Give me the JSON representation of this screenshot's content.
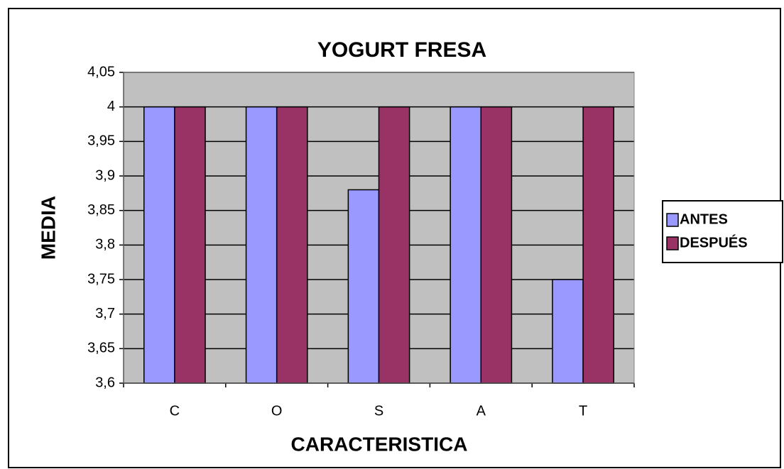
{
  "chart_data": {
    "type": "bar",
    "title": "YOGURT FRESA",
    "x_label": "CARACTERISTICA",
    "y_label": "MEDIA",
    "categories": [
      "C",
      "O",
      "S",
      "A",
      "T"
    ],
    "series": [
      {
        "name": "ANTES",
        "color": "#9999ff",
        "values": [
          4,
          4,
          3.88,
          4,
          3.75
        ]
      },
      {
        "name": "DESPUÉS",
        "color": "#993366",
        "values": [
          4,
          4,
          4,
          4,
          4
        ]
      }
    ],
    "ylim": [
      3.6,
      4.05
    ],
    "yticks": [
      {
        "value": 3.6,
        "label": "3,6"
      },
      {
        "value": 3.65,
        "label": "3,65"
      },
      {
        "value": 3.7,
        "label": "3,7"
      },
      {
        "value": 3.75,
        "label": "3,75"
      },
      {
        "value": 3.8,
        "label": "3,8"
      },
      {
        "value": 3.85,
        "label": "3,85"
      },
      {
        "value": 3.9,
        "label": "3,9"
      },
      {
        "value": 3.95,
        "label": "3,95"
      },
      4,
      {
        "value": 4.05,
        "label": "4,05"
      }
    ],
    "grid": true,
    "plot_background": "#c0c0c0",
    "legend": "right"
  }
}
